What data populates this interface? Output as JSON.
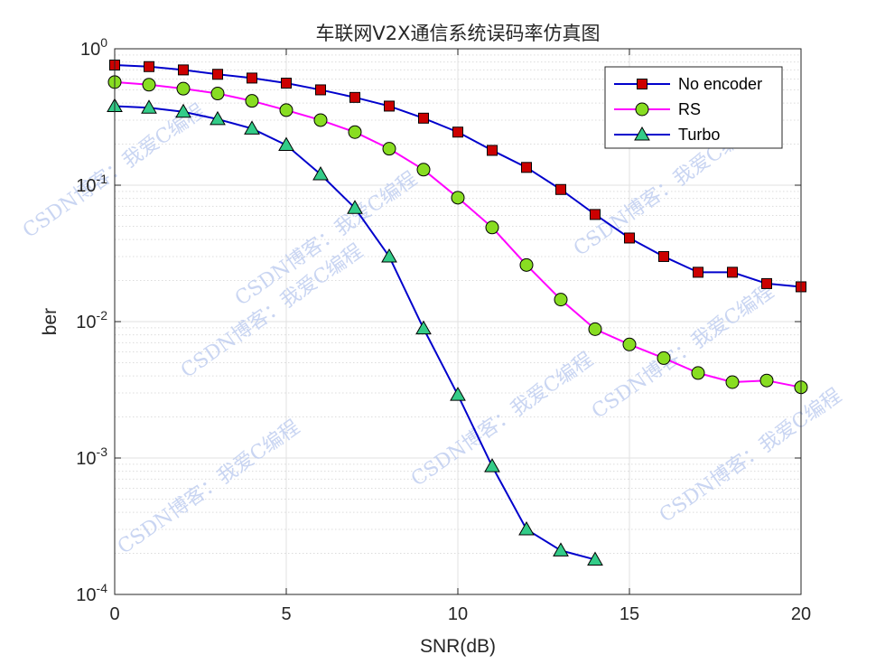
{
  "chart_data": {
    "type": "line",
    "title": "车联网V2X通信系统误码率仿真图",
    "xlabel": "SNR(dB)",
    "ylabel": "ber",
    "xlim": [
      0,
      20
    ],
    "ylim": [
      0.0001,
      1
    ],
    "yscale": "log",
    "grid": true,
    "legend_position": "top-right",
    "x_ticks": [
      0,
      5,
      10,
      15,
      20
    ],
    "y_ticks": [
      {
        "base": "10",
        "exp": "0",
        "value": 1
      },
      {
        "base": "10",
        "exp": "-1",
        "value": 0.1
      },
      {
        "base": "10",
        "exp": "-2",
        "value": 0.01
      },
      {
        "base": "10",
        "exp": "-3",
        "value": 0.001
      },
      {
        "base": "10",
        "exp": "-4",
        "value": 0.0001
      }
    ],
    "series": [
      {
        "name": "No encoder",
        "color": "#0000cc",
        "marker": "square",
        "marker_fill": "#cc0000",
        "x": [
          0,
          1,
          2,
          3,
          4,
          5,
          6,
          7,
          8,
          9,
          10,
          11,
          12,
          13,
          14,
          15,
          16,
          17,
          18,
          19,
          20
        ],
        "values": [
          0.76,
          0.74,
          0.7,
          0.65,
          0.61,
          0.56,
          0.5,
          0.44,
          0.38,
          0.31,
          0.245,
          0.18,
          0.135,
          0.093,
          0.061,
          0.041,
          0.03,
          0.023,
          0.023,
          0.019,
          0.018
        ]
      },
      {
        "name": "RS",
        "color": "#ff00ff",
        "marker": "circle",
        "marker_fill": "#88dd22",
        "x": [
          0,
          1,
          2,
          3,
          4,
          5,
          6,
          7,
          8,
          9,
          10,
          11,
          12,
          13,
          14,
          15,
          16,
          17,
          18,
          19,
          20
        ],
        "values": [
          0.57,
          0.545,
          0.51,
          0.47,
          0.415,
          0.355,
          0.3,
          0.245,
          0.185,
          0.13,
          0.081,
          0.049,
          0.026,
          0.0145,
          0.0088,
          0.0068,
          0.0054,
          0.0042,
          0.0036,
          0.0037,
          0.0033
        ]
      },
      {
        "name": "Turbo",
        "color": "#0000cc",
        "marker": "triangle",
        "marker_fill": "#33cc88",
        "x": [
          0,
          1,
          2,
          3,
          4,
          5,
          6,
          7,
          8,
          9,
          10,
          11,
          12,
          13,
          14
        ],
        "values": [
          0.38,
          0.37,
          0.345,
          0.305,
          0.26,
          0.197,
          0.12,
          0.068,
          0.03,
          0.0089,
          0.0029,
          0.00087,
          0.0003,
          0.00021,
          0.00018
        ]
      }
    ]
  },
  "watermark": {
    "text": "CSDN博客：我爱C编程"
  }
}
